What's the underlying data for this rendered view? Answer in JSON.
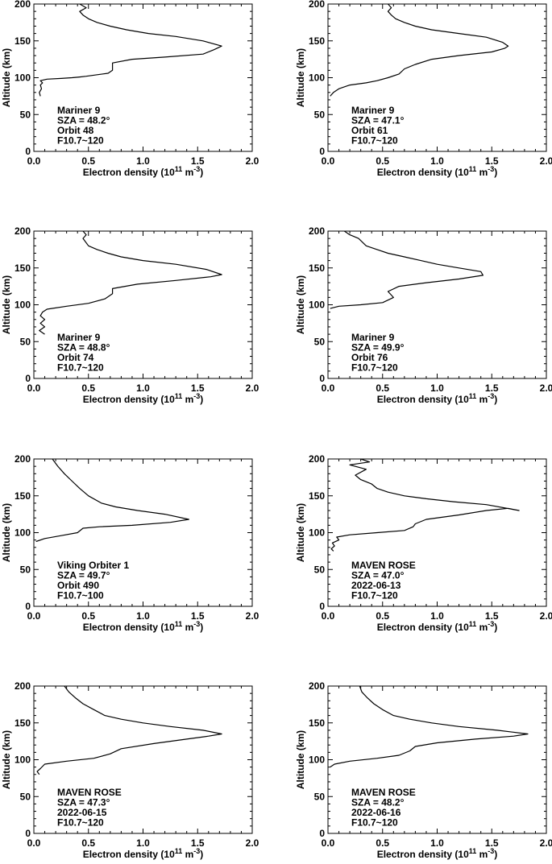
{
  "chart_data": [
    {
      "type": "line",
      "xlabel": "Electron density (10",
      "xlabel_exp": "11",
      "xlabel_unit": " m",
      "xlabel_unit_exp": "-3",
      "xlabel_close": ")",
      "ylabel": "Altitude (km)",
      "xlim": [
        0,
        2.0
      ],
      "ylim": [
        0,
        200
      ],
      "xticks": [
        "0.0",
        "0.5",
        "1.0",
        "1.5",
        "2.0"
      ],
      "yticks": [
        "0",
        "50",
        "100",
        "150",
        "200"
      ],
      "annotation": [
        "Mariner 9",
        "SZA = 48.2°",
        "Orbit 48",
        "F10.7~120"
      ],
      "series": [
        {
          "x": [
            0.06,
            0.05,
            0.07,
            0.06,
            0.08,
            0.06,
            0.12,
            0.25,
            0.35,
            0.42,
            0.48,
            0.58,
            0.68,
            0.72,
            0.72,
            0.9,
            1.2,
            1.55,
            1.65,
            1.72,
            1.55,
            1.3,
            1.05,
            0.85,
            0.7,
            0.58,
            0.5,
            0.45,
            0.42,
            0.48,
            0.42
          ],
          "y": [
            75,
            80,
            85,
            90,
            93,
            96,
            98,
            99,
            100,
            101,
            102,
            104,
            106,
            110,
            120,
            125,
            128,
            132,
            138,
            143,
            150,
            156,
            160,
            165,
            170,
            175,
            180,
            185,
            190,
            195,
            200
          ]
        }
      ]
    },
    {
      "type": "line",
      "xlabel": "Electron density (10",
      "xlabel_exp": "11",
      "xlabel_unit": " m",
      "xlabel_unit_exp": "-3",
      "xlabel_close": ")",
      "ylabel": "Altitude (km)",
      "xlim": [
        0,
        2.0
      ],
      "ylim": [
        0,
        200
      ],
      "xticks": [
        "0.0",
        "0.5",
        "1.0",
        "1.5",
        "2.0"
      ],
      "yticks": [
        "0",
        "50",
        "100",
        "150",
        "200"
      ],
      "annotation": [
        "Mariner 9",
        "SZA = 47.1°",
        "Orbit 61",
        "F10.7~120"
      ],
      "series": [
        {
          "x": [
            0.02,
            0.05,
            0.1,
            0.2,
            0.35,
            0.45,
            0.55,
            0.65,
            0.7,
            0.8,
            0.95,
            1.2,
            1.5,
            1.62,
            1.65,
            1.6,
            1.45,
            1.2,
            0.95,
            0.8,
            0.7,
            0.62,
            0.58,
            0.55,
            0.58,
            0.55
          ],
          "y": [
            75,
            80,
            85,
            90,
            93,
            96,
            100,
            105,
            112,
            118,
            125,
            130,
            135,
            140,
            143,
            148,
            155,
            160,
            165,
            170,
            175,
            180,
            185,
            190,
            195,
            200
          ]
        }
      ]
    },
    {
      "type": "line",
      "xlabel": "Electron density (10",
      "xlabel_exp": "11",
      "xlabel_unit": " m",
      "xlabel_unit_exp": "-3",
      "xlabel_close": ")",
      "ylabel": "Altitude (km)",
      "xlim": [
        0,
        2.0
      ],
      "ylim": [
        0,
        200
      ],
      "xticks": [
        "0.0",
        "0.5",
        "1.0",
        "1.5",
        "2.0"
      ],
      "yticks": [
        "0",
        "50",
        "100",
        "150",
        "200"
      ],
      "annotation": [
        "Mariner 9",
        "SZA = 48.8°",
        "Orbit 74",
        "F10.7~120"
      ],
      "series": [
        {
          "x": [
            0.1,
            0.05,
            0.1,
            0.06,
            0.1,
            0.06,
            0.08,
            0.12,
            0.3,
            0.5,
            0.65,
            0.72,
            0.72,
            0.95,
            1.3,
            1.62,
            1.72,
            1.58,
            1.3,
            1.0,
            0.8,
            0.68,
            0.58,
            0.5,
            0.45,
            0.48,
            0.45
          ],
          "y": [
            60,
            65,
            70,
            75,
            80,
            85,
            90,
            94,
            98,
            102,
            108,
            115,
            122,
            128,
            133,
            138,
            141,
            148,
            155,
            160,
            165,
            170,
            175,
            180,
            190,
            195,
            200
          ]
        }
      ]
    },
    {
      "type": "line",
      "xlabel": "Electron density (10",
      "xlabel_exp": "11",
      "xlabel_unit": " m",
      "xlabel_unit_exp": "-3",
      "xlabel_close": ")",
      "ylabel": "Altitude (km)",
      "xlim": [
        0,
        2.0
      ],
      "ylim": [
        0,
        200
      ],
      "xticks": [
        "0.0",
        "0.5",
        "1.0",
        "1.5",
        "2.0"
      ],
      "yticks": [
        "0",
        "50",
        "100",
        "150",
        "200"
      ],
      "annotation": [
        "Mariner 9",
        "SZA = 49.9°",
        "Orbit 76",
        "F10.7~120"
      ],
      "series": [
        {
          "x": [
            0.02,
            0.1,
            0.3,
            0.5,
            0.6,
            0.55,
            0.65,
            0.9,
            1.2,
            1.42,
            1.4,
            1.2,
            1.0,
            0.85,
            0.7,
            0.55,
            0.45,
            0.35,
            0.28,
            0.2,
            0.15
          ],
          "y": [
            95,
            98,
            100,
            103,
            110,
            118,
            125,
            130,
            135,
            140,
            145,
            150,
            155,
            160,
            165,
            170,
            175,
            180,
            190,
            195,
            200
          ]
        }
      ]
    },
    {
      "type": "line",
      "xlabel": "Electron density (10",
      "xlabel_exp": "11",
      "xlabel_unit": " m",
      "xlabel_unit_exp": "-3",
      "xlabel_close": ")",
      "ylabel": "Altitude (km)",
      "xlim": [
        0,
        2.0
      ],
      "ylim": [
        0,
        200
      ],
      "xticks": [
        "0.0",
        "0.5",
        "1.0",
        "1.5",
        "2.0"
      ],
      "yticks": [
        "0",
        "50",
        "100",
        "150",
        "200"
      ],
      "annotation": [
        "Viking Orbiter 1",
        "SZA = 49.7°",
        "Orbit 490",
        "F10.7~100"
      ],
      "series": [
        {
          "x": [
            0.02,
            0.1,
            0.25,
            0.4,
            0.45,
            0.6,
            0.9,
            1.25,
            1.42,
            1.2,
            0.95,
            0.75,
            0.62,
            0.5,
            0.42,
            0.35,
            0.28,
            0.22,
            0.17
          ],
          "y": [
            88,
            92,
            96,
            100,
            106,
            108,
            110,
            114,
            118,
            125,
            130,
            135,
            140,
            150,
            160,
            170,
            180,
            190,
            200
          ]
        }
      ]
    },
    {
      "type": "line",
      "xlabel": "Electron density (10",
      "xlabel_exp": "11",
      "xlabel_unit": " m",
      "xlabel_unit_exp": "-3",
      "xlabel_close": ")",
      "ylabel": "Altitude (km)",
      "xlim": [
        0,
        2.0
      ],
      "ylim": [
        0,
        200
      ],
      "xticks": [
        "0.0",
        "0.5",
        "1.0",
        "1.5",
        "2.0"
      ],
      "yticks": [
        "0",
        "50",
        "100",
        "150",
        "200"
      ],
      "annotation": [
        "MAVEN ROSE",
        "SZA = 47.0°",
        "2022-06-13",
        "F10.7~120"
      ],
      "series": [
        {
          "x": [
            0.05,
            0.03,
            0.06,
            0.04,
            0.1,
            0.08,
            0.2,
            0.45,
            0.7,
            0.78,
            0.8,
            0.9,
            1.2,
            1.45,
            1.65,
            1.75,
            1.45,
            1.15,
            0.9,
            0.7,
            0.55,
            0.45,
            0.4,
            0.3,
            0.25,
            0.35,
            0.2,
            0.38,
            0.3
          ],
          "y": [
            75,
            78,
            82,
            86,
            90,
            94,
            97,
            100,
            103,
            108,
            112,
            118,
            124,
            130,
            133,
            130,
            138,
            142,
            146,
            150,
            155,
            160,
            166,
            172,
            178,
            186,
            192,
            196,
            200
          ]
        }
      ]
    },
    {
      "type": "line",
      "xlabel": "Electron density (10",
      "xlabel_exp": "11",
      "xlabel_unit": " m",
      "xlabel_unit_exp": "-3",
      "xlabel_close": ")",
      "ylabel": "Altitude (km)",
      "xlim": [
        0,
        2.0
      ],
      "ylim": [
        0,
        200
      ],
      "xticks": [
        "0.0",
        "0.5",
        "1.0",
        "1.5",
        "2.0"
      ],
      "yticks": [
        "0",
        "50",
        "100",
        "150",
        "200"
      ],
      "annotation": [
        "MAVEN ROSE",
        "SZA = 47.3°",
        "2022-06-15",
        "F10.7~120"
      ],
      "series": [
        {
          "x": [
            0.05,
            0.03,
            0.06,
            0.1,
            0.3,
            0.55,
            0.7,
            0.8,
            1.1,
            1.4,
            1.6,
            1.72,
            1.55,
            1.25,
            1.0,
            0.8,
            0.65,
            0.55,
            0.45,
            0.38,
            0.32,
            0.28
          ],
          "y": [
            80,
            84,
            88,
            94,
            98,
            102,
            108,
            115,
            122,
            128,
            132,
            135,
            140,
            145,
            150,
            155,
            160,
            168,
            176,
            184,
            192,
            200
          ]
        }
      ]
    },
    {
      "type": "line",
      "xlabel": "Electron density (10",
      "xlabel_exp": "11",
      "xlabel_unit": " m",
      "xlabel_unit_exp": "-3",
      "xlabel_close": ")",
      "ylabel": "Altitude (km)",
      "xlim": [
        0,
        2.0
      ],
      "ylim": [
        0,
        200
      ],
      "xticks": [
        "0.0",
        "0.5",
        "1.0",
        "1.5",
        "2.0"
      ],
      "yticks": [
        "0",
        "50",
        "100",
        "150",
        "200"
      ],
      "annotation": [
        "MAVEN ROSE",
        "SZA = 48.2°",
        "2022-06-16",
        "F10.7~120"
      ],
      "series": [
        {
          "x": [
            0.02,
            0.06,
            0.2,
            0.45,
            0.65,
            0.75,
            0.8,
            1.0,
            1.35,
            1.7,
            1.83,
            1.55,
            1.2,
            0.95,
            0.75,
            0.6,
            0.5,
            0.42,
            0.36,
            0.31,
            0.29
          ],
          "y": [
            90,
            94,
            98,
            102,
            106,
            112,
            118,
            123,
            128,
            132,
            135,
            140,
            145,
            150,
            155,
            160,
            168,
            176,
            184,
            192,
            200
          ]
        }
      ]
    }
  ]
}
